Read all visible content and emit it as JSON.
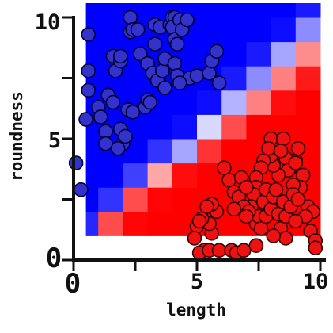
{
  "chart_data": {
    "type": "scatter",
    "title": "",
    "xlabel": "length",
    "ylabel": "roundness",
    "xlim": [
      0,
      10
    ],
    "ylim": [
      0,
      10
    ],
    "x_ticks": [
      "0",
      "5",
      "10"
    ],
    "y_ticks": [
      "0",
      "5",
      "10"
    ],
    "grid": false,
    "legend": "none",
    "background": {
      "type": "heatmap",
      "description_colors": {
        "class_a": "#0000ff",
        "class_b": "#ff0000"
      },
      "x_cells": [
        0.5,
        1.5,
        2.5,
        3.5,
        4.5,
        5.5,
        6.5,
        7.5,
        8.5,
        9.5
      ],
      "y_cells": [
        1.5,
        2.5,
        3.5,
        4.5,
        5.5,
        6.5,
        7.5,
        8.5,
        9.5,
        10.5
      ],
      "cell_size": 1.0,
      "values_note": "",
      "values": [
        [
          0.85,
          -0.7,
          -0.98,
          -1.0,
          -1.0,
          -1.0,
          -1.0,
          -1.0,
          -1.0,
          -1.0
        ],
        [
          1.0,
          0.8,
          -0.7,
          -0.98,
          -1.0,
          -1.0,
          -1.0,
          -1.0,
          -1.0,
          -1.0
        ],
        [
          1.0,
          1.0,
          0.75,
          -0.35,
          -0.95,
          -1.0,
          -1.0,
          -1.0,
          -1.0,
          -1.0
        ],
        [
          1.0,
          1.0,
          1.0,
          0.8,
          0.35,
          -0.8,
          -1.0,
          -1.0,
          -1.0,
          -1.0
        ],
        [
          1.0,
          1.0,
          1.0,
          1.0,
          0.95,
          0.15,
          -0.7,
          -1.0,
          -1.0,
          -1.0
        ],
        [
          1.0,
          1.0,
          1.0,
          1.0,
          1.0,
          0.95,
          0.3,
          -0.5,
          -0.95,
          -1.0
        ],
        [
          1.0,
          1.0,
          1.0,
          1.0,
          1.0,
          1.0,
          0.9,
          0.45,
          -0.5,
          -0.9
        ],
        [
          1.0,
          1.0,
          1.0,
          1.0,
          1.0,
          1.0,
          1.0,
          0.9,
          0.35,
          -0.45
        ],
        [
          1.0,
          1.0,
          1.0,
          1.0,
          1.0,
          1.0,
          1.0,
          1.0,
          0.95,
          0.45
        ],
        [
          1.0,
          1.0,
          1.0,
          1.0,
          1.0,
          1.0,
          1.0,
          1.0,
          1.0,
          0.9
        ]
      ]
    },
    "series": [
      {
        "color": "#3333cc",
        "edge": "#000033",
        "points": [
          [
            0.6,
            9.3
          ],
          [
            0.6,
            7.8
          ],
          [
            0.6,
            7.0
          ],
          [
            0.5,
            5.8
          ],
          [
            0.1,
            4.0
          ],
          [
            0.3,
            2.9
          ],
          [
            1.0,
            6.3
          ],
          [
            1.1,
            5.9
          ],
          [
            1.3,
            5.3
          ],
          [
            1.3,
            4.8
          ],
          [
            1.4,
            6.8
          ],
          [
            1.6,
            8.4
          ],
          [
            1.7,
            7.8
          ],
          [
            1.6,
            6.5
          ],
          [
            1.9,
            5.4
          ],
          [
            2.0,
            4.8
          ],
          [
            1.8,
            4.6
          ],
          [
            2.1,
            5.1
          ],
          [
            1.9,
            8.2
          ],
          [
            1.9,
            8.4
          ],
          [
            2.3,
            10.0
          ],
          [
            2.3,
            9.4
          ],
          [
            2.2,
            6.2
          ],
          [
            2.4,
            6.1
          ],
          [
            2.4,
            9.5
          ],
          [
            2.6,
            9.5
          ],
          [
            2.7,
            8.5
          ],
          [
            2.9,
            6.3
          ],
          [
            3.0,
            8.1
          ],
          [
            3.0,
            6.6
          ],
          [
            3.2,
            7.7
          ],
          [
            3.1,
            6.5
          ],
          [
            3.3,
            8.9
          ],
          [
            3.4,
            7.4
          ],
          [
            3.3,
            9.7
          ],
          [
            3.5,
            9.6
          ],
          [
            3.6,
            7.8
          ],
          [
            3.7,
            8.3
          ],
          [
            3.7,
            7.1
          ],
          [
            3.9,
            9.7
          ],
          [
            4.0,
            10.0
          ],
          [
            4.1,
            10.0
          ],
          [
            4.0,
            9.6
          ],
          [
            4.1,
            9.1
          ],
          [
            4.2,
            8.9
          ],
          [
            4.3,
            9.9
          ],
          [
            4.1,
            8.1
          ],
          [
            4.4,
            9.5
          ],
          [
            4.2,
            7.6
          ],
          [
            4.6,
            9.9
          ],
          [
            4.7,
            7.5
          ],
          [
            4.3,
            7.3
          ],
          [
            5.0,
            7.6
          ],
          [
            5.5,
            7.7
          ],
          [
            5.6,
            8.2
          ],
          [
            5.8,
            8.6
          ],
          [
            5.9,
            7.3
          ]
        ]
      },
      {
        "color": "#ee1111",
        "edge": "#330000",
        "points": [
          [
            8.0,
            5.0
          ],
          [
            8.5,
            5.0
          ],
          [
            8.0,
            4.1
          ],
          [
            8.5,
            4.3
          ],
          [
            9.0,
            4.1
          ],
          [
            9.1,
            4.6
          ],
          [
            9.3,
            3.5
          ],
          [
            9.2,
            3.0
          ],
          [
            9.5,
            2.2
          ],
          [
            9.7,
            2.0
          ],
          [
            9.4,
            1.8
          ],
          [
            9.6,
            1.2
          ],
          [
            9.8,
            0.8
          ],
          [
            9.8,
            0.5
          ],
          [
            8.8,
            3.8
          ],
          [
            8.9,
            3.1
          ],
          [
            8.6,
            4.2
          ],
          [
            8.7,
            3.7
          ],
          [
            8.3,
            3.5
          ],
          [
            8.1,
            3.9
          ],
          [
            8.0,
            4.3
          ],
          [
            7.7,
            4.1
          ],
          [
            7.6,
            3.8
          ],
          [
            7.4,
            3.4
          ],
          [
            7.4,
            3.0
          ],
          [
            7.3,
            2.7
          ],
          [
            7.2,
            2.2
          ],
          [
            7.4,
            1.5
          ],
          [
            7.5,
            1.8
          ],
          [
            7.6,
            1.3
          ],
          [
            7.7,
            2.4
          ],
          [
            7.8,
            2.9
          ],
          [
            7.8,
            1.8
          ],
          [
            8.0,
            2.1
          ],
          [
            8.1,
            2.6
          ],
          [
            8.2,
            2.9
          ],
          [
            8.3,
            1.9
          ],
          [
            8.4,
            1.3
          ],
          [
            8.5,
            2.4
          ],
          [
            8.6,
            1.8
          ],
          [
            8.6,
            0.9
          ],
          [
            8.8,
            2.2
          ],
          [
            8.9,
            2.7
          ],
          [
            9.0,
            1.6
          ],
          [
            9.1,
            2.5
          ],
          [
            6.3,
            3.3
          ],
          [
            6.5,
            2.8
          ],
          [
            6.7,
            2.6
          ],
          [
            6.8,
            3.4
          ],
          [
            6.9,
            2.2
          ],
          [
            7.0,
            3.0
          ],
          [
            6.1,
            3.8
          ],
          [
            5.8,
            2.0
          ],
          [
            5.6,
            1.1
          ],
          [
            5.5,
            1.5
          ],
          [
            5.6,
            2.3
          ],
          [
            5.4,
            2.2
          ],
          [
            5.2,
            1.7
          ],
          [
            5.0,
            1.4
          ],
          [
            5.1,
            1.6
          ],
          [
            4.9,
            0.9
          ],
          [
            5.3,
            0.4
          ],
          [
            5.1,
            0.3
          ],
          [
            5.5,
            0.4
          ],
          [
            5.9,
            0.4
          ],
          [
            6.4,
            0.4
          ],
          [
            6.6,
            0.3
          ],
          [
            6.9,
            0.4
          ],
          [
            7.4,
            0.6
          ],
          [
            6.5,
            2.1
          ],
          [
            7.1,
            2.0
          ],
          [
            7.9,
            4.6
          ],
          [
            8.4,
            4.5
          ],
          [
            9.0,
            4.0
          ],
          [
            8.1,
            1.0
          ],
          [
            7.0,
            1.8
          ]
        ]
      }
    ]
  }
}
